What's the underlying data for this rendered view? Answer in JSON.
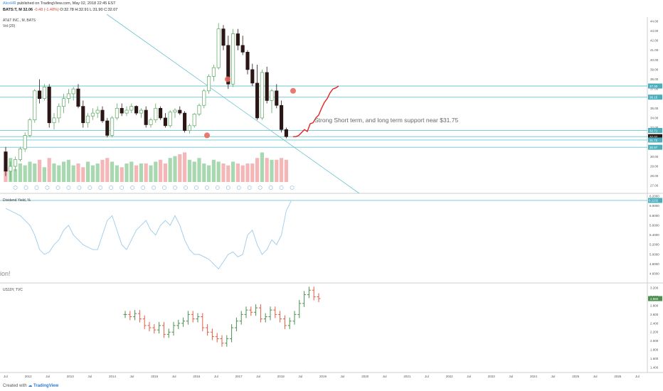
{
  "header": {
    "author": "AlexHR",
    "published": "published on TradingView.com, May 02, 2018 22:45 EST",
    "symbol_line": "BATS:T, M 32.06",
    "change": "-0.48 (-1.48%)",
    "ohlc": "O:32.78 H:32.91 L:31.90 C:32.07",
    "pane1_title": "AT&T INC., M, BATS",
    "vol_label": "Vol (20)",
    "pane2_title": "Dividend Yield, %",
    "pane3_title": "US10Y, TVC"
  },
  "annotation": "Strong Short term, and long term support near $31.75",
  "edge_text": "ion!",
  "footer": {
    "created_with": "Created with",
    "brand": "TradingView"
  },
  "colors": {
    "up": "#5aa860",
    "down": "#2b1616",
    "line": "#6cc4d0",
    "vol_up": "#a7d8b0",
    "vol_down": "#f4b6b6",
    "yield": "#9ccbea",
    "bars_down": "#e35d44",
    "bars_up": "#4d8f51",
    "projection": "#e52424",
    "dot": "#e86a5f"
  },
  "x_axis": {
    "labels": [
      "Jul",
      "2012",
      "Jul",
      "2013",
      "Jul",
      "2014",
      "Jul",
      "2015",
      "Jul",
      "2016",
      "Jul",
      "2017",
      "Jul",
      "2018",
      "Jul",
      "2019",
      "Jul",
      "2020",
      "Jul",
      "2021",
      "Jul",
      "2022",
      "Jul",
      "2023",
      "Jul",
      "2024",
      "Jul",
      "2025",
      "Jul",
      "2026",
      "Jul"
    ]
  },
  "price_axis": {
    "ticks": [
      "44.00",
      "43.00",
      "42.00",
      "41.00",
      "40.00",
      "39.00",
      "38.00",
      "37.00",
      "36.00",
      "35.00",
      "34.00",
      "33.00",
      "32.00",
      "31.00",
      "30.00",
      "29.00",
      "28.00",
      "27.00"
    ],
    "tags": [
      "37.30",
      "36.15",
      "32.71",
      "32.07",
      "31.72",
      "30.97"
    ]
  },
  "yield_axis": {
    "ticks": [
      "6.2000",
      "6.0000",
      "5.8000",
      "5.6000",
      "5.4000",
      "5.2000",
      "5.0000",
      "4.8000",
      "4.6000"
    ],
    "tag": "6.1132"
  },
  "rate_axis": {
    "ticks": [
      "3.200",
      "3.000",
      "2.800",
      "2.600",
      "2.400",
      "2.200",
      "2.000",
      "1.800",
      "1.600",
      "1.400"
    ],
    "tag": "2.960"
  },
  "chart_data": [
    {
      "type": "candlestick",
      "title": "AT&T INC., M, BATS",
      "ylim": [
        26.5,
        44.5
      ],
      "horizontal_levels": [
        37.3,
        36.15,
        32.71,
        32.07,
        31.72,
        30.97
      ],
      "candles": [
        [
          30.5,
          31,
          28,
          28.5
        ],
        [
          28.5,
          29.5,
          27.5,
          29
        ],
        [
          29,
          30,
          28.5,
          29.7
        ],
        [
          29.7,
          31,
          29.5,
          30.8
        ],
        [
          30.8,
          32.5,
          30.5,
          32.2
        ],
        [
          32.2,
          34,
          32,
          33.8
        ],
        [
          33.8,
          37,
          33.5,
          36.8
        ],
        [
          36.8,
          38,
          35.5,
          36
        ],
        [
          36,
          37.5,
          35.8,
          37.2
        ],
        [
          37.2,
          37.5,
          33,
          33.5
        ],
        [
          33.5,
          34.5,
          32.8,
          34
        ],
        [
          34,
          35.5,
          33.5,
          35.2
        ],
        [
          35.2,
          36.5,
          34.5,
          36
        ],
        [
          36,
          37,
          35.5,
          36.5
        ],
        [
          36.5,
          37.2,
          35.8,
          37
        ],
        [
          37,
          37.5,
          35,
          35.2
        ],
        [
          35.2,
          35.8,
          33,
          33.5
        ],
        [
          33.5,
          34.5,
          33,
          34.2
        ],
        [
          34.2,
          35,
          33.8,
          34.5
        ],
        [
          34.5,
          35.2,
          34,
          34.8
        ],
        [
          34.8,
          35.2,
          33.5,
          33.7
        ],
        [
          33.7,
          34,
          32,
          32.2
        ],
        [
          32.2,
          34.2,
          32,
          34
        ],
        [
          34,
          35.5,
          33.8,
          35
        ],
        [
          35,
          35.5,
          34.2,
          34.5
        ],
        [
          34.5,
          35.2,
          34.2,
          34.8
        ],
        [
          34.8,
          35.5,
          34.5,
          35.2
        ],
        [
          35.2,
          35.3,
          34.3,
          34.5
        ],
        [
          34.5,
          35,
          34,
          34.8
        ],
        [
          34.8,
          35.2,
          33,
          33.3
        ],
        [
          33.3,
          34,
          33,
          33.8
        ],
        [
          33.8,
          35.5,
          33.5,
          35
        ],
        [
          35,
          35.2,
          33.8,
          34
        ],
        [
          34,
          34.5,
          33,
          33.2
        ],
        [
          33.2,
          34.8,
          33,
          34.6
        ],
        [
          34.6,
          35,
          34,
          34.8
        ],
        [
          34.8,
          35.2,
          34.3,
          34.5
        ],
        [
          34.5,
          34.7,
          32.5,
          32.7
        ],
        [
          32.7,
          33.4,
          32.4,
          33.2
        ],
        [
          33.2,
          34.5,
          33,
          34.4
        ],
        [
          34.4,
          35.5,
          34.2,
          35.3
        ],
        [
          35.3,
          37,
          35,
          36.8
        ],
        [
          36.8,
          38.5,
          36.5,
          38.3
        ],
        [
          38.3,
          39.5,
          37.8,
          39.2
        ],
        [
          39.2,
          43.8,
          39,
          43.2
        ],
        [
          43.2,
          43.6,
          41,
          41.5
        ],
        [
          41.5,
          42.5,
          37,
          37.5
        ],
        [
          37.5,
          43.2,
          37.2,
          42.7
        ],
        [
          42.7,
          43.2,
          41,
          41.5
        ],
        [
          41.5,
          42.5,
          40.5,
          40.8
        ],
        [
          40.8,
          41,
          38.5,
          39
        ],
        [
          39,
          39.6,
          37.3,
          37.6
        ],
        [
          37.6,
          39.5,
          33.8,
          34
        ],
        [
          34,
          39,
          33.8,
          38.7
        ],
        [
          38.7,
          39.3,
          35.5,
          35.8
        ],
        [
          35.8,
          37,
          34.5,
          36.8
        ],
        [
          36.8,
          37.5,
          35,
          35.3
        ],
        [
          35.3,
          35.8,
          32.5,
          32.8
        ],
        [
          32.8,
          33,
          31.9,
          32.07
        ]
      ],
      "volume": [
        0.8,
        1.3,
        0.7,
        1.0,
        0.9,
        1.1,
        1.0,
        1.2,
        0.8,
        1.3,
        1.0,
        0.9,
        1.1,
        1.2,
        0.9,
        1.0,
        0.8,
        1.1,
        0.9,
        1.0,
        1.2,
        1.3,
        1.1,
        0.9,
        0.8,
        1.0,
        1.1,
        0.9,
        1.0,
        1.0,
        0.9,
        1.1,
        1.2,
        1.0,
        1.3,
        1.4,
        1.5,
        1.6,
        1.2,
        1.1,
        1.3,
        1.0,
        0.9,
        1.2,
        1.1,
        1.0,
        0.9,
        1.1,
        1.0,
        0.9,
        1.0,
        1.0,
        1.3,
        1.6,
        1.3,
        1.2,
        1.2,
        1.3,
        1.2
      ],
      "projection": [
        [
          32.07,
          32.2
        ],
        [
          32.5,
          32.8
        ],
        [
          32.6,
          33.4
        ],
        [
          33.5,
          34.0
        ],
        [
          34.3,
          35.0
        ],
        [
          35.6,
          36.0
        ],
        [
          36.6,
          37.0
        ],
        [
          37.1,
          37.3
        ]
      ],
      "support_points": [
        [
          7.0,
          32.2
        ],
        [
          4.3,
          38.0
        ],
        [
          5.8,
          36.8
        ]
      ],
      "annotation": "Strong Short term, and long term support near $31.75"
    },
    {
      "type": "line",
      "title": "Dividend Yield, %",
      "ylim": [
        4.5,
        6.2
      ],
      "values": [
        5.95,
        5.9,
        5.85,
        5.8,
        5.7,
        5.6,
        5.4,
        5.1,
        5.0,
        5.05,
        5.2,
        5.3,
        5.5,
        5.6,
        5.4,
        5.3,
        5.2,
        5.15,
        5.1,
        5.1,
        5.4,
        5.7,
        5.8,
        5.5,
        5.2,
        5.1,
        5.3,
        5.5,
        5.6,
        5.7,
        5.5,
        5.4,
        5.6,
        5.7,
        5.6,
        5.8,
        5.6,
        5.3,
        5.1,
        5.0,
        5.0,
        4.95,
        4.9,
        4.8,
        4.7,
        4.85,
        5.0,
        5.05,
        4.95,
        5.0,
        5.4,
        5.5,
        5.2,
        5.0,
        5.1,
        5.3,
        5.2,
        5.4,
        5.9,
        6.1
      ]
    },
    {
      "type": "ohlc",
      "title": "US10Y, TVC",
      "ylim": [
        1.35,
        3.25
      ],
      "values": [
        2.6,
        2.55,
        2.62,
        2.5,
        2.35,
        2.3,
        2.25,
        2.35,
        2.15,
        2.2,
        2.35,
        2.4,
        2.45,
        2.6,
        2.5,
        2.55,
        2.3,
        2.2,
        2.1,
        2.05,
        1.95,
        2.05,
        2.3,
        2.45,
        2.6,
        2.7,
        2.65,
        2.75,
        2.5,
        2.55,
        2.7,
        2.6,
        2.5,
        2.35,
        2.45,
        2.6,
        2.85,
        3.05,
        3.15,
        3.0,
        2.96
      ]
    }
  ]
}
